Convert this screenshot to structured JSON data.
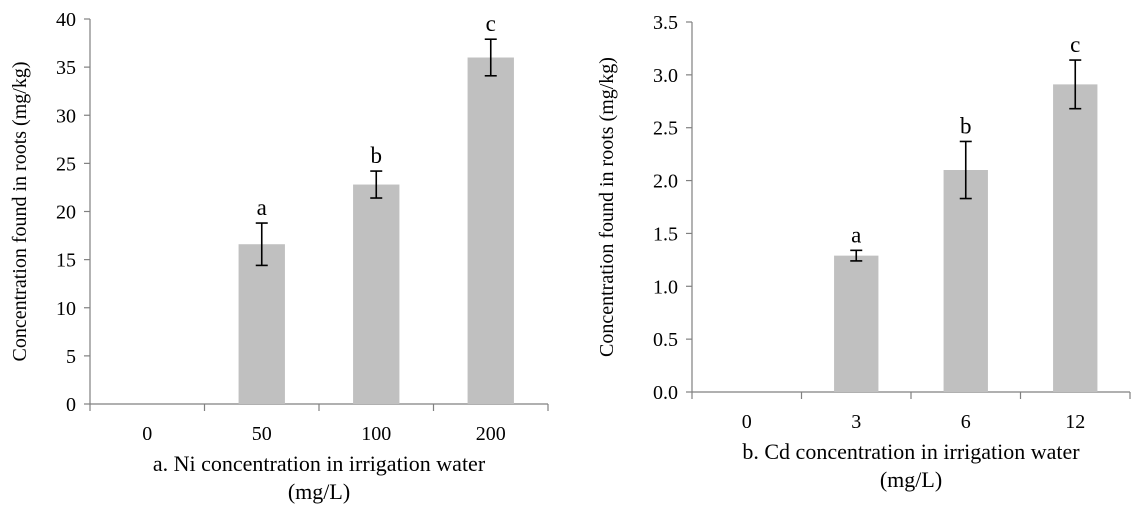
{
  "chart_data": [
    {
      "type": "bar",
      "categories": [
        "0",
        "50",
        "100",
        "200"
      ],
      "values": [
        0,
        16.6,
        22.8,
        36.0
      ],
      "error": [
        0,
        2.2,
        1.4,
        1.9
      ],
      "letters": [
        "",
        "a",
        "b",
        "c"
      ],
      "xlabel_lines": [
        "a. Ni concentration in irrigation water",
        "(mg/L)"
      ],
      "ylabel": "Concentration found in roots (mg/kg)",
      "ylim": [
        0,
        40
      ],
      "yticks": [
        "0",
        "5",
        "10",
        "15",
        "20",
        "25",
        "30",
        "35",
        "40"
      ],
      "bar_color": "#c0c0c0",
      "grid": false,
      "legend": "none"
    },
    {
      "type": "bar",
      "categories": [
        "0",
        "3",
        "6",
        "12"
      ],
      "values": [
        0,
        1.29,
        2.1,
        2.91
      ],
      "error": [
        0,
        0.05,
        0.27,
        0.23
      ],
      "letters": [
        "",
        "a",
        "b",
        "c"
      ],
      "xlabel_lines": [
        "b. Cd concentration in irrigation water",
        "(mg/L)"
      ],
      "ylabel": "Concentration found in roots (mg/kg)",
      "ylim": [
        0,
        3.5
      ],
      "yticks": [
        "0.0",
        "0.5",
        "1.0",
        "1.5",
        "2.0",
        "2.5",
        "3.0",
        "3.5"
      ],
      "bar_color": "#c0c0c0",
      "grid": false,
      "legend": "none"
    }
  ]
}
